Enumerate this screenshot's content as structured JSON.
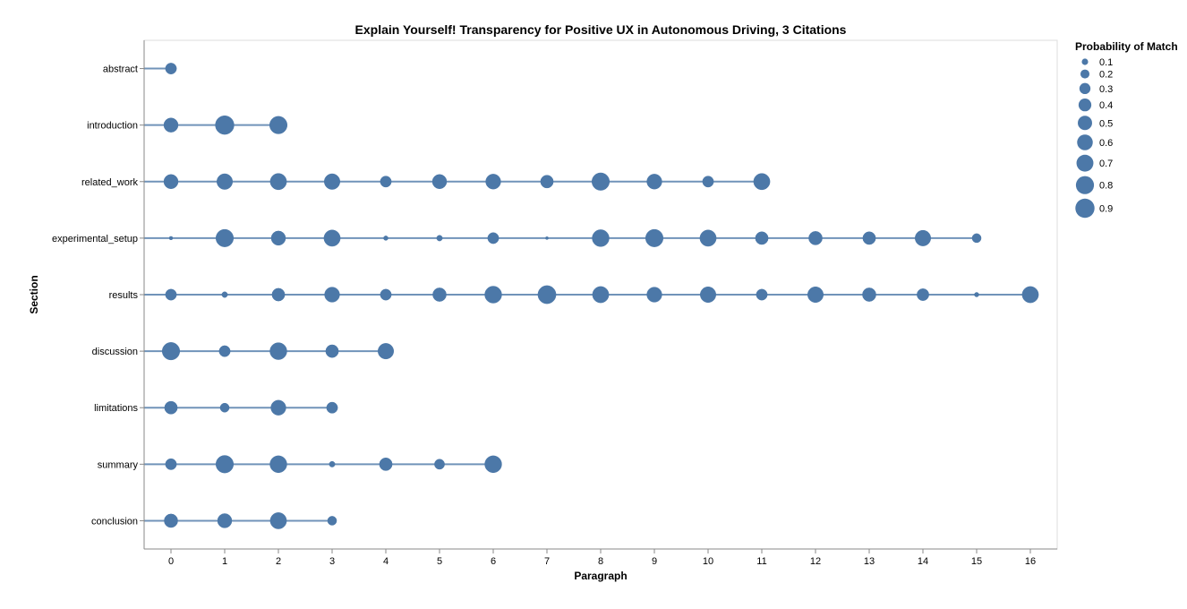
{
  "chart_data": {
    "type": "scatter",
    "title": "Explain Yourself! Transparency for Positive UX in Autonomous Driving, 3 Citations",
    "xlabel": "Paragraph",
    "ylabel": "Section",
    "x_ticks": [
      0,
      1,
      2,
      3,
      4,
      5,
      6,
      7,
      8,
      9,
      10,
      11,
      12,
      13,
      14,
      15,
      16
    ],
    "xlim": [
      -0.5,
      16.5
    ],
    "categories": [
      "abstract",
      "introduction",
      "related_work",
      "experimental_setup",
      "results",
      "discussion",
      "limitations",
      "summary",
      "conclusion"
    ],
    "size_legend": {
      "title": "Probability of Match",
      "values": [
        0.1,
        0.2,
        0.3,
        0.4,
        0.5,
        0.6,
        0.7,
        0.8,
        0.9
      ],
      "labels": [
        "0.1",
        "0.2",
        "0.3",
        "0.4",
        "0.5",
        "0.6",
        "0.7",
        "0.8",
        "0.9"
      ]
    },
    "grid": false,
    "legend_position": "right",
    "mark_color": "#4c78a8",
    "line_color": "#4c78a8",
    "series": [
      {
        "section": "abstract",
        "points": [
          [
            0,
            0.3
          ]
        ]
      },
      {
        "section": "introduction",
        "points": [
          [
            0,
            0.5
          ],
          [
            1,
            0.85
          ],
          [
            2,
            0.75
          ]
        ]
      },
      {
        "section": "related_work",
        "points": [
          [
            0,
            0.5
          ],
          [
            1,
            0.6
          ],
          [
            2,
            0.65
          ],
          [
            3,
            0.6
          ],
          [
            4,
            0.3
          ],
          [
            5,
            0.5
          ],
          [
            6,
            0.55
          ],
          [
            7,
            0.4
          ],
          [
            8,
            0.75
          ],
          [
            9,
            0.55
          ],
          [
            10,
            0.3
          ],
          [
            11,
            0.65
          ]
        ]
      },
      {
        "section": "experimental_setup",
        "points": [
          [
            0,
            0.03
          ],
          [
            1,
            0.75
          ],
          [
            2,
            0.5
          ],
          [
            3,
            0.65
          ],
          [
            4,
            0.05
          ],
          [
            5,
            0.08
          ],
          [
            6,
            0.3
          ],
          [
            7,
            0.02
          ],
          [
            8,
            0.7
          ],
          [
            9,
            0.75
          ],
          [
            10,
            0.65
          ],
          [
            11,
            0.4
          ],
          [
            12,
            0.45
          ],
          [
            13,
            0.4
          ],
          [
            14,
            0.6
          ],
          [
            15,
            0.2
          ]
        ]
      },
      {
        "section": "results",
        "points": [
          [
            0,
            0.3
          ],
          [
            1,
            0.08
          ],
          [
            2,
            0.4
          ],
          [
            3,
            0.55
          ],
          [
            4,
            0.3
          ],
          [
            5,
            0.45
          ],
          [
            6,
            0.7
          ],
          [
            7,
            0.8
          ],
          [
            8,
            0.65
          ],
          [
            9,
            0.55
          ],
          [
            10,
            0.6
          ],
          [
            11,
            0.3
          ],
          [
            12,
            0.6
          ],
          [
            13,
            0.45
          ],
          [
            14,
            0.35
          ],
          [
            15,
            0.05
          ],
          [
            16,
            0.65
          ]
        ]
      },
      {
        "section": "discussion",
        "points": [
          [
            0,
            0.75
          ],
          [
            1,
            0.3
          ],
          [
            2,
            0.7
          ],
          [
            3,
            0.4
          ],
          [
            4,
            0.6
          ]
        ]
      },
      {
        "section": "limitations",
        "points": [
          [
            0,
            0.4
          ],
          [
            1,
            0.2
          ],
          [
            2,
            0.55
          ],
          [
            3,
            0.3
          ]
        ]
      },
      {
        "section": "summary",
        "points": [
          [
            0,
            0.3
          ],
          [
            1,
            0.75
          ],
          [
            2,
            0.7
          ],
          [
            3,
            0.08
          ],
          [
            4,
            0.4
          ],
          [
            5,
            0.25
          ],
          [
            6,
            0.7
          ]
        ]
      },
      {
        "section": "conclusion",
        "points": [
          [
            0,
            0.45
          ],
          [
            1,
            0.5
          ],
          [
            2,
            0.65
          ],
          [
            3,
            0.2
          ]
        ]
      }
    ]
  }
}
